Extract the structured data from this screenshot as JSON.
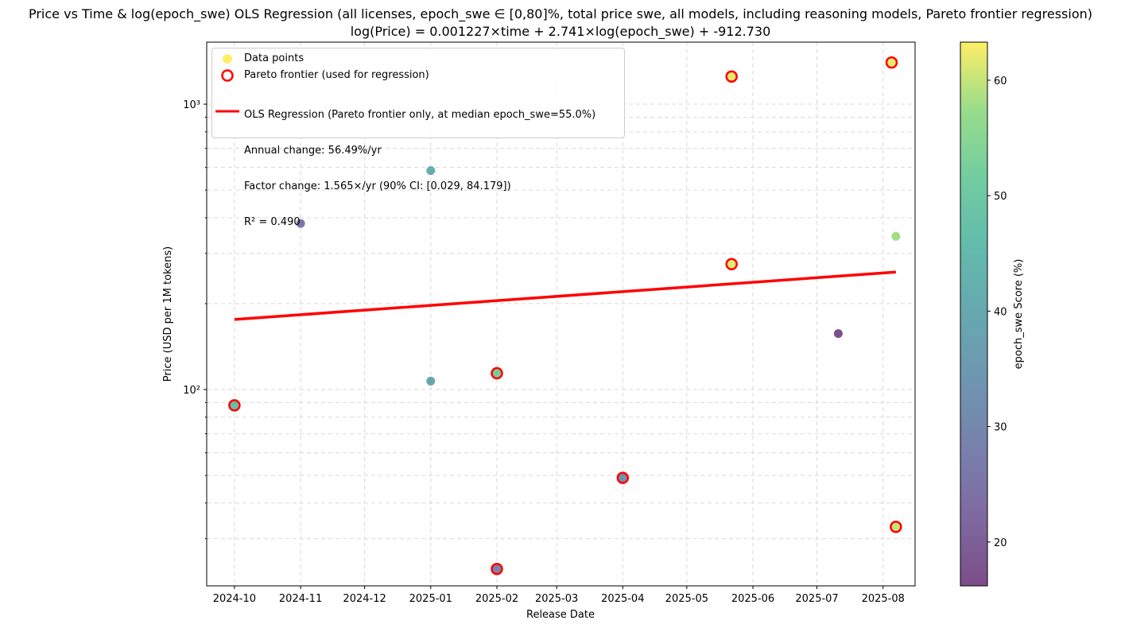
{
  "figure": {
    "title_line1": "Price vs Time & log(epoch_swe) OLS Regression (all licenses, epoch_swe ∈ [0,80]%, total price swe, all models, including reasoning models, Pareto frontier regression)",
    "title_line2": "log(Price) = 0.001227×time + 2.741×log(epoch_swe) + -912.730"
  },
  "legend": {
    "points_label": "Data points",
    "pareto_label": "Pareto frontier (used for regression)",
    "ols_line1": "OLS Regression (Pareto frontier only, at median epoch_swe=55.0%)",
    "ols_line2": "Annual change: 56.49%/yr",
    "ols_line3": "Factor change: 1.565×/yr (90% CI: [0.029, 84.179])",
    "ols_line4": "R² = 0.490",
    "location": "upper-left",
    "colors": {
      "point": "#FDE725",
      "pareto": "#FF0000",
      "ols": "#FF0000"
    }
  },
  "colorbar": {
    "label": "epoch_swe Score (%)",
    "range": [
      16.2,
      63.3
    ],
    "ticks": [
      20,
      30,
      40,
      50,
      60
    ],
    "tick_labels": [
      "20",
      "30",
      "40",
      "50",
      "60"
    ],
    "colormap": "viridis"
  },
  "chart_data": {
    "type": "scatter",
    "xlabel": "Release Date",
    "ylabel": "Price (USD per 1M tokens)",
    "x_type": "date",
    "xlim": [
      "2024-09-18",
      "2025-08-16"
    ],
    "ylim": [
      20.5,
      1650
    ],
    "yscale": "log",
    "grid": true,
    "x_ticks": [
      "2024-10-01",
      "2024-11-01",
      "2024-12-01",
      "2025-01-01",
      "2025-02-01",
      "2025-03-01",
      "2025-04-01",
      "2025-05-01",
      "2025-06-01",
      "2025-07-01",
      "2025-08-01"
    ],
    "x_tick_labels": [
      "2024-10",
      "2024-11",
      "2024-12",
      "2025-01",
      "2025-02",
      "2025-03",
      "2025-04",
      "2025-05",
      "2025-06",
      "2025-07",
      "2025-08"
    ],
    "y_ticks": [
      100,
      1000
    ],
    "y_tick_labels": [
      "10²",
      "10³"
    ],
    "points": [
      {
        "x": "2024-10-01",
        "y": 88,
        "score": 47,
        "pareto": true
      },
      {
        "x": "2024-11-01",
        "y": 382,
        "score": 26,
        "pareto": false
      },
      {
        "x": "2025-01-01",
        "y": 585,
        "score": 42,
        "pareto": false
      },
      {
        "x": "2025-01-01",
        "y": 107,
        "score": 40,
        "pareto": false
      },
      {
        "x": "2025-02-01",
        "y": 114,
        "score": 52,
        "pareto": true
      },
      {
        "x": "2025-02-01",
        "y": 23.5,
        "score": 30,
        "pareto": true
      },
      {
        "x": "2025-04-01",
        "y": 49,
        "score": 33,
        "pareto": true
      },
      {
        "x": "2025-05-22",
        "y": 1250,
        "score": 62,
        "pareto": true
      },
      {
        "x": "2025-05-22",
        "y": 275,
        "score": 62,
        "pareto": true
      },
      {
        "x": "2025-07-11",
        "y": 157,
        "score": 17,
        "pareto": false
      },
      {
        "x": "2025-08-05",
        "y": 1400,
        "score": 62,
        "pareto": true
      },
      {
        "x": "2025-08-07",
        "y": 344,
        "score": 58,
        "pareto": false
      },
      {
        "x": "2025-08-07",
        "y": 33,
        "score": 60,
        "pareto": true
      }
    ],
    "series": [
      {
        "name": "OLS Regression",
        "type": "line",
        "x": [
          "2024-10-01",
          "2025-08-07"
        ],
        "y": [
          176,
          258
        ]
      }
    ]
  }
}
